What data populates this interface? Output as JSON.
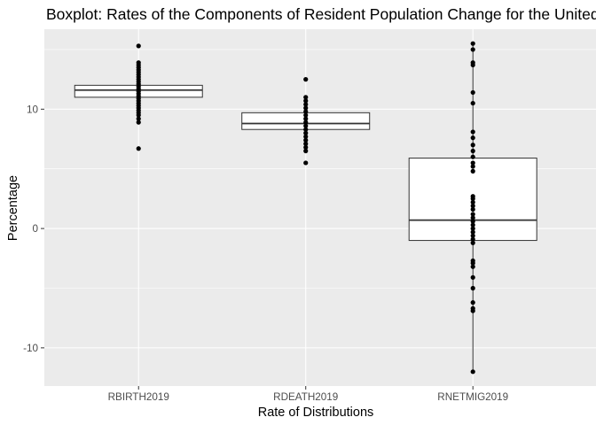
{
  "chart_data": {
    "type": "boxplot",
    "title": "Boxplot:  Rates of the Components of Resident Population Change for the United States",
    "xlabel": "Rate of Distributions",
    "ylabel": "Percentage",
    "ylim": [
      -13.2,
      16.7
    ],
    "y_ticks": [
      -10,
      0,
      10
    ],
    "grid": true,
    "legend": "none",
    "colors": {
      "panel": "#ebebeb",
      "grid_major": "#ffffff",
      "box_fill": "#ffffff",
      "box_line": "#333333",
      "points": "#000000"
    },
    "categories": [
      "RBIRTH2019",
      "RDEATH2019",
      "RNETMIG2019"
    ],
    "boxes": [
      {
        "name": "RBIRTH2019",
        "q1": 11.0,
        "median": 11.6,
        "q3": 12.0,
        "whisker_low": 9.5,
        "whisker_high": 13.5,
        "points": [
          15.3,
          13.9,
          13.7,
          13.5,
          13.3,
          13.1,
          12.9,
          12.7,
          12.5,
          12.3,
          12.1,
          11.9,
          11.7,
          11.5,
          11.3,
          11.1,
          10.9,
          10.7,
          10.5,
          10.3,
          10.1,
          9.9,
          9.7,
          9.5,
          9.2,
          8.9,
          6.7
        ]
      },
      {
        "name": "RDEATH2019",
        "q1": 8.3,
        "median": 8.8,
        "q3": 9.7,
        "whisker_low": 7.0,
        "whisker_high": 10.8,
        "points": [
          12.5,
          11.0,
          10.7,
          10.4,
          10.1,
          9.8,
          9.5,
          9.2,
          8.9,
          8.6,
          8.3,
          8.0,
          7.7,
          7.4,
          7.1,
          6.8,
          6.5,
          5.5
        ]
      },
      {
        "name": "RNETMIG2019",
        "q1": -1.0,
        "median": 0.7,
        "q3": 5.9,
        "whisker_low": -12.0,
        "whisker_high": 15.5,
        "points": [
          15.5,
          15.0,
          13.9,
          13.7,
          11.4,
          10.5,
          8.1,
          7.6,
          7.0,
          6.5,
          6.0,
          5.5,
          5.2,
          4.8,
          2.7,
          2.5,
          2.2,
          1.9,
          1.6,
          1.2,
          0.9,
          0.6,
          0.3,
          0.0,
          -0.3,
          -0.6,
          -0.9,
          -1.2,
          -2.7,
          -2.9,
          -3.2,
          -4.1,
          -5.0,
          -6.2,
          -6.7,
          -6.9,
          -12.0
        ]
      }
    ]
  }
}
